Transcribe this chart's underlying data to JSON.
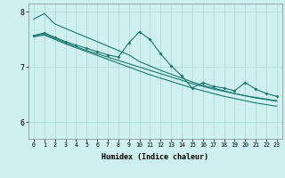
{
  "xlabel": "Humidex (Indice chaleur)",
  "bg_color": "#cff0f0",
  "grid_color": "#aad8d8",
  "line_color": "#1a7a6e",
  "x_ticks": [
    0,
    1,
    2,
    3,
    4,
    5,
    6,
    7,
    8,
    9,
    10,
    11,
    12,
    13,
    14,
    15,
    16,
    17,
    18,
    19,
    20,
    21,
    22,
    23
  ],
  "xlim": [
    -0.5,
    23.5
  ],
  "ylim": [
    5.7,
    8.15
  ],
  "yticks": [
    6,
    7,
    8
  ],
  "series1": [
    7.87,
    7.97,
    7.78,
    7.7,
    7.62,
    7.54,
    7.46,
    7.38,
    7.3,
    7.22,
    7.1,
    7.02,
    6.94,
    6.87,
    6.8,
    6.73,
    6.67,
    6.62,
    6.57,
    6.52,
    6.48,
    6.44,
    6.41,
    6.38
  ],
  "series2": [
    7.57,
    7.62,
    7.54,
    7.46,
    7.4,
    7.34,
    7.28,
    7.22,
    7.18,
    7.44,
    7.64,
    7.5,
    7.24,
    7.02,
    6.84,
    6.62,
    6.72,
    6.65,
    6.62,
    6.57,
    6.72,
    6.6,
    6.52,
    6.47
  ],
  "series3": [
    7.57,
    7.6,
    7.52,
    7.44,
    7.37,
    7.3,
    7.24,
    7.18,
    7.12,
    7.06,
    7.0,
    6.94,
    6.88,
    6.82,
    6.76,
    6.7,
    6.65,
    6.6,
    6.56,
    6.52,
    6.48,
    6.45,
    6.42,
    6.39
  ],
  "series4": [
    7.55,
    7.58,
    7.5,
    7.42,
    7.35,
    7.28,
    7.21,
    7.14,
    7.07,
    7.0,
    6.93,
    6.86,
    6.8,
    6.74,
    6.68,
    6.62,
    6.57,
    6.52,
    6.47,
    6.43,
    6.39,
    6.35,
    6.32,
    6.29
  ]
}
